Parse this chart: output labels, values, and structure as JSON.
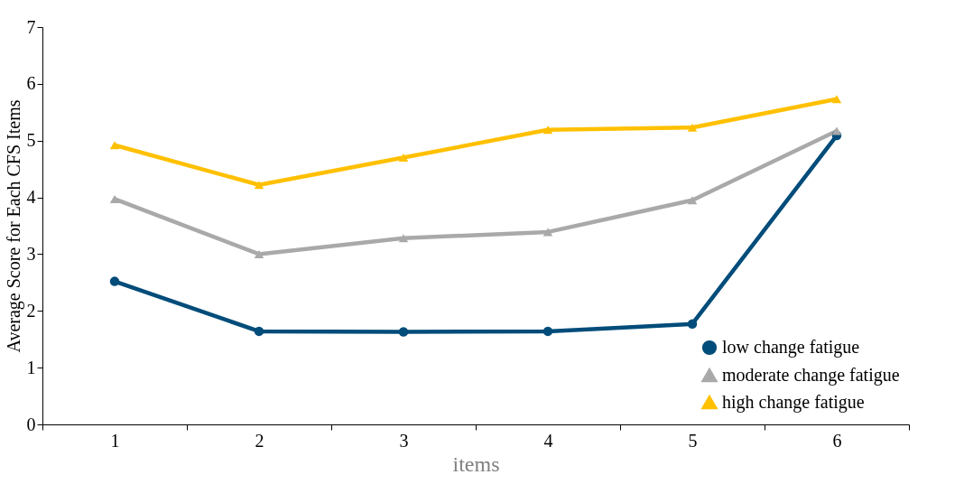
{
  "chart_data": {
    "type": "line",
    "xlabel": "items",
    "ylabel": "Average Score for Each CFS Items",
    "categories": [
      "1",
      "2",
      "3",
      "4",
      "5",
      "6"
    ],
    "ylim": [
      0,
      7
    ],
    "yticks": [
      0,
      1,
      2,
      3,
      4,
      5,
      6,
      7
    ],
    "grid": false,
    "legend": "bottom right",
    "line_style": "solid",
    "series": [
      {
        "name": "low change fatigue",
        "color": "#004c7a",
        "marker": "circle",
        "values": [
          2.52,
          1.64,
          1.63,
          1.64,
          1.77,
          5.09
        ]
      },
      {
        "name": "moderate change fatigue",
        "color": "#a9a9a9",
        "marker": "triangle",
        "values": [
          3.97,
          3.0,
          3.28,
          3.39,
          3.95,
          5.17
        ]
      },
      {
        "name": "high change fatigue",
        "color": "#ffc000",
        "marker": "triangle",
        "values": [
          4.92,
          4.22,
          4.7,
          5.19,
          5.23,
          5.73
        ]
      }
    ]
  }
}
